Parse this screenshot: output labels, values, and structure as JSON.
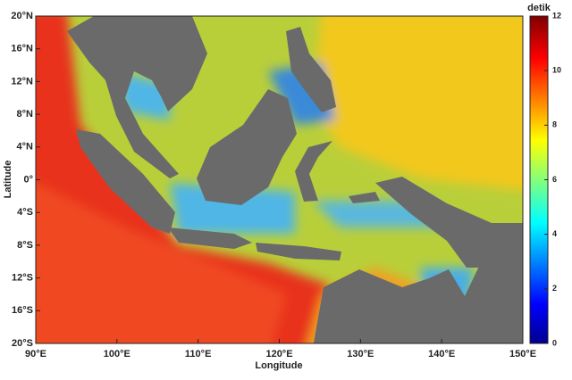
{
  "chart_data": {
    "type": "map",
    "xlabel": "Longitude",
    "ylabel": "Latitude",
    "xlim": [
      90,
      150
    ],
    "xticks": [
      {
        "value": 90,
        "label": "90°E"
      },
      {
        "value": 100,
        "label": "100°E"
      },
      {
        "value": 110,
        "label": "110°E"
      },
      {
        "value": 120,
        "label": "120°E"
      },
      {
        "value": 130,
        "label": "130°E"
      },
      {
        "value": 140,
        "label": "140°E"
      },
      {
        "value": 150,
        "label": "150°E"
      }
    ],
    "ylim": [
      -20,
      20
    ],
    "yticks": [
      {
        "value": 20,
        "label": "20°N"
      },
      {
        "value": 16,
        "label": "16°N"
      },
      {
        "value": 12,
        "label": "12°N"
      },
      {
        "value": 8,
        "label": "8°N"
      },
      {
        "value": 4,
        "label": "4°N"
      },
      {
        "value": 0,
        "label": "0°"
      },
      {
        "value": -4,
        "label": "4°S"
      },
      {
        "value": -8,
        "label": "8°S"
      },
      {
        "value": -12,
        "label": "12°S"
      },
      {
        "value": -16,
        "label": "16°S"
      },
      {
        "value": -20,
        "label": "20°S"
      }
    ],
    "colorbar": {
      "label": "detik",
      "lim": [
        0,
        12
      ],
      "ticks": [
        0,
        2,
        4,
        6,
        8,
        10,
        12
      ]
    }
  }
}
